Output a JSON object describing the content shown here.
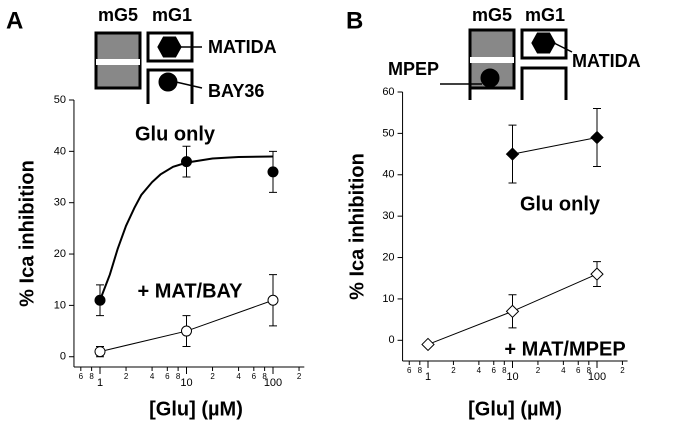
{
  "panels": {
    "A": {
      "letter": "A",
      "mg5": "mG5",
      "mg1": "mG1",
      "drug1": "MATIDA",
      "drug2": "BAY36"
    },
    "B": {
      "letter": "B",
      "mg5": "mG5",
      "mg1": "mG1",
      "drug1": "MATIDA",
      "drug2": "MPEP"
    }
  },
  "chart_data": [
    {
      "type": "scatter",
      "xlabel": "[Glu] (µM)",
      "ylabel": "% Ica inhibition",
      "log_x": true,
      "xlim": [
        0.5,
        230
      ],
      "ylim": [
        -2,
        50
      ],
      "xticks": [
        {
          "value": 0.6,
          "label": "6"
        },
        {
          "value": 0.8,
          "label": "8"
        },
        1,
        {
          "value": 2,
          "label": "2"
        },
        {
          "value": 4,
          "label": "4"
        },
        {
          "value": 6,
          "label": "6"
        },
        {
          "value": 8,
          "label": "8"
        },
        10,
        {
          "value": 20,
          "label": "2"
        },
        {
          "value": 40,
          "label": "4"
        },
        {
          "value": 60,
          "label": "6"
        },
        {
          "value": 80,
          "label": "8"
        },
        100,
        {
          "value": 200,
          "label": "2"
        }
      ],
      "yticks": [
        0,
        10,
        20,
        30,
        40,
        50
      ],
      "series": [
        {
          "name": "Glu only",
          "color": "#000000",
          "marker": "circle",
          "fill": "#000000",
          "line": false,
          "x": [
            1,
            10,
            100
          ],
          "values": [
            11,
            38,
            36
          ],
          "errors": [
            3,
            3,
            4
          ]
        },
        {
          "name": "+ MAT/BAY",
          "color": "#000000",
          "marker": "circle",
          "fill": "#ffffff",
          "line": true,
          "x": [
            1,
            10,
            100
          ],
          "values": [
            1,
            5,
            11
          ],
          "errors": [
            1,
            3,
            5
          ]
        }
      ],
      "fit": {
        "color": "#000000",
        "x": [
          1,
          1.3,
          1.6,
          2,
          2.5,
          3,
          4,
          5,
          7,
          10,
          20,
          40,
          100
        ],
        "values": [
          11,
          16,
          21,
          25.5,
          29,
          31.5,
          34,
          35.5,
          37,
          37.8,
          38.6,
          38.9,
          39
        ]
      }
    },
    {
      "type": "scatter",
      "xlabel": "[Glu] (µM)",
      "ylabel": "% Ica inhibition",
      "log_x": true,
      "xlim": [
        0.5,
        230
      ],
      "ylim": [
        -5,
        60
      ],
      "xticks": [
        {
          "value": 0.6,
          "label": "6"
        },
        {
          "value": 0.8,
          "label": "8"
        },
        1,
        {
          "value": 2,
          "label": "2"
        },
        {
          "value": 4,
          "label": "4"
        },
        {
          "value": 6,
          "label": "6"
        },
        {
          "value": 8,
          "label": "8"
        },
        10,
        {
          "value": 20,
          "label": "2"
        },
        {
          "value": 40,
          "label": "4"
        },
        {
          "value": 60,
          "label": "6"
        },
        {
          "value": 80,
          "label": "8"
        },
        100,
        {
          "value": 200,
          "label": "2"
        }
      ],
      "yticks": [
        0,
        10,
        20,
        30,
        40,
        50,
        60
      ],
      "series": [
        {
          "name": "Glu only",
          "color": "#000000",
          "marker": "diamond",
          "fill": "#000000",
          "line": true,
          "x": [
            10,
            100
          ],
          "values": [
            45,
            49
          ],
          "errors": [
            7,
            7
          ]
        },
        {
          "name": "+ MAT/MPEP",
          "color": "#000000",
          "marker": "diamond",
          "fill": "#ffffff",
          "line": true,
          "x": [
            1,
            10,
            100
          ],
          "values": [
            -1,
            7,
            16
          ],
          "errors": [
            0,
            4,
            3
          ]
        }
      ]
    }
  ]
}
